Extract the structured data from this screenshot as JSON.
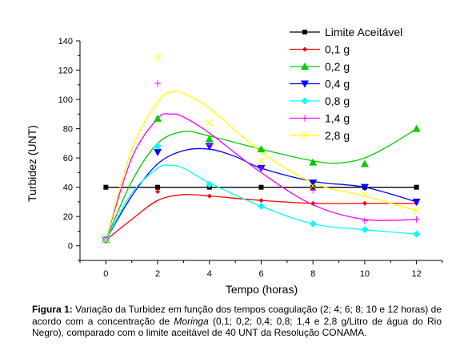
{
  "chart_data": {
    "type": "line",
    "title": "",
    "xlabel": "Tempo (horas)",
    "ylabel": "Turbidez (UNT)",
    "xlim": [
      -1,
      13
    ],
    "ylim": [
      -10,
      140
    ],
    "xticks": [
      0,
      2,
      4,
      6,
      8,
      10,
      12
    ],
    "yticks": [
      0,
      20,
      40,
      60,
      80,
      100,
      120,
      140
    ],
    "grid": false,
    "legend_position": "top-right",
    "series": [
      {
        "name": "Limite Aceitável",
        "color": "#000000",
        "marker": "square",
        "x": [
          0,
          2,
          4,
          6,
          8,
          10,
          12
        ],
        "y": [
          40,
          40,
          40,
          40,
          40,
          40,
          40
        ],
        "curve": [
          [
            0,
            40
          ],
          [
            12,
            40
          ]
        ]
      },
      {
        "name": "0,1 g",
        "color": "#ff0000",
        "marker": "diamond-small",
        "x": [
          0,
          2,
          4,
          6,
          8,
          10,
          12
        ],
        "y": [
          4,
          37,
          34,
          31,
          29,
          29,
          29
        ],
        "curve": [
          [
            0,
            4
          ],
          [
            1,
            18
          ],
          [
            2,
            31
          ],
          [
            3,
            35
          ],
          [
            4,
            34
          ],
          [
            6,
            31
          ],
          [
            8,
            29
          ],
          [
            10,
            29
          ],
          [
            12,
            29
          ]
        ]
      },
      {
        "name": "0,2 g",
        "color": "#00cc00",
        "marker": "triangle-up",
        "x": [
          0,
          2,
          4,
          6,
          8,
          10,
          12
        ],
        "y": [
          4,
          87,
          73,
          66,
          57,
          56,
          80
        ],
        "curve": [
          [
            0,
            4
          ],
          [
            1,
            44
          ],
          [
            2,
            70
          ],
          [
            3,
            78
          ],
          [
            4,
            75
          ],
          [
            6,
            66
          ],
          [
            8,
            58
          ],
          [
            9,
            56.5
          ],
          [
            10,
            60
          ],
          [
            11,
            69
          ],
          [
            12,
            80
          ]
        ]
      },
      {
        "name": "0,4 g",
        "color": "#0000ff",
        "marker": "triangle-down",
        "x": [
          0,
          2,
          4,
          6,
          8,
          10,
          12
        ],
        "y": [
          4,
          64,
          68,
          53,
          43,
          40,
          30
        ],
        "curve": [
          [
            0,
            4
          ],
          [
            1,
            34
          ],
          [
            2,
            56
          ],
          [
            3,
            65
          ],
          [
            4,
            66
          ],
          [
            5,
            61
          ],
          [
            6,
            53
          ],
          [
            8,
            44
          ],
          [
            10,
            40
          ],
          [
            12,
            30
          ]
        ]
      },
      {
        "name": "0,8 g",
        "color": "#00ffff",
        "marker": "diamond",
        "x": [
          0,
          2,
          4,
          6,
          8,
          10,
          12
        ],
        "y": [
          4,
          68,
          42,
          27,
          15,
          11,
          8
        ],
        "curve": [
          [
            0,
            4
          ],
          [
            1,
            36
          ],
          [
            2,
            53
          ],
          [
            2.5,
            55
          ],
          [
            3,
            53
          ],
          [
            4,
            43
          ],
          [
            6,
            27
          ],
          [
            8,
            15
          ],
          [
            10,
            11
          ],
          [
            12,
            8
          ]
        ]
      },
      {
        "name": "1,4 g",
        "color": "#ff00ff",
        "marker": "plus",
        "x": [
          0,
          2,
          4,
          6,
          8,
          10,
          12
        ],
        "y": [
          4,
          111,
          69,
          53,
          38,
          17,
          18
        ],
        "curve": [
          [
            0,
            4
          ],
          [
            1,
            60
          ],
          [
            2,
            87
          ],
          [
            2.5,
            90
          ],
          [
            3,
            88
          ],
          [
            4,
            77
          ],
          [
            6,
            50
          ],
          [
            8,
            28
          ],
          [
            10,
            18
          ],
          [
            12,
            18
          ]
        ]
      },
      {
        "name": "2,8 g",
        "color": "#ffff00",
        "marker": "cross",
        "x": [
          0,
          2,
          4,
          6,
          8,
          10,
          12
        ],
        "y": [
          4,
          129,
          84,
          58,
          41,
          35,
          24
        ],
        "curve": [
          [
            0,
            4
          ],
          [
            1,
            66
          ],
          [
            2,
            98
          ],
          [
            2.5,
            105
          ],
          [
            3,
            104
          ],
          [
            4,
            94
          ],
          [
            6,
            64
          ],
          [
            8,
            43
          ],
          [
            10,
            34
          ],
          [
            12,
            24
          ]
        ]
      }
    ]
  },
  "caption": {
    "label": "Figura 1:",
    "text_before": " Variação da Turbidez em função dos tempos coagulação (2; 4; 6; 8; 10 e 12 horas) de acordo com a concentração de ",
    "italic": "Moringa",
    "text_after": " (0,1; 0,2; 0,4; 0,8; 1,4 e 2,8 g/Litro de água do Rio Negro), comparado com o limite aceitável de 40 UNT da Resolução CONAMA."
  }
}
